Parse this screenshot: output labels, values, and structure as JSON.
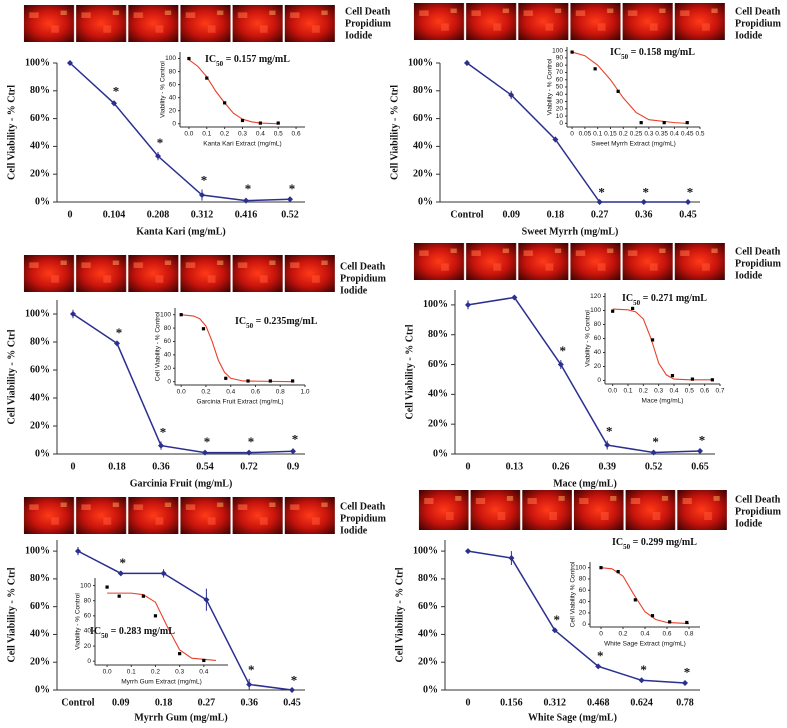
{
  "chart_data": [
    {
      "type": "line",
      "image_label": [
        "Cell Death",
        "Propidium",
        "Iodide"
      ],
      "x_label": "Kanta Kari (mg/mL)",
      "y_label": "Cell Viability - % Ctrl",
      "categories": [
        "0",
        "0.104",
        "0.208",
        "0.312",
        "0.416",
        "0.52"
      ],
      "values": [
        100,
        71,
        33,
        5,
        1,
        2
      ],
      "errors": [
        1,
        2,
        3,
        4,
        2,
        1
      ],
      "markers": [
        null,
        "*",
        "*",
        "*",
        "*",
        "*"
      ],
      "color": "#2b2f8f",
      "ylim": [
        0,
        100
      ],
      "yticks": [
        {
          "value": 0,
          "label": "0%"
        },
        {
          "value": 20,
          "label": "20%"
        },
        {
          "value": 40,
          "label": "40%"
        },
        {
          "value": 60,
          "label": "60%"
        },
        {
          "value": 80,
          "label": "80%"
        },
        {
          "value": 100,
          "label": "100%"
        }
      ],
      "inset": {
        "type": "scatter",
        "annotation": [
          "IC",
          "50",
          " = 0.157 mg/mL"
        ],
        "x_label": "Kanta Kari Extract (mg/mL)",
        "y_label": "Viability - % Control",
        "x": [
          0,
          0.1,
          0.2,
          0.3,
          0.4,
          0.5
        ],
        "values": [
          100,
          70,
          32,
          5,
          1,
          1
        ],
        "color": "#000000",
        "fit": {
          "x": [
            0,
            0.05,
            0.1,
            0.15,
            0.2,
            0.25,
            0.3,
            0.35,
            0.4,
            0.5
          ],
          "values": [
            98,
            88,
            72,
            50,
            32,
            16,
            7,
            3,
            1,
            0
          ],
          "color": "#e8402a"
        },
        "xlim": [
          -0.05,
          0.65
        ],
        "xticks": [
          {
            "value": 0,
            "label": "0.0"
          },
          {
            "value": 0.1,
            "label": "0.1"
          },
          {
            "value": 0.2,
            "label": "0.2"
          },
          {
            "value": 0.3,
            "label": "0.3"
          },
          {
            "value": 0.4,
            "label": "0.4"
          },
          {
            "value": 0.5,
            "label": "0.5"
          },
          {
            "value": 0.6,
            "label": "0.6"
          }
        ],
        "ylim": [
          -5,
          110
        ],
        "yticks": [
          0,
          20,
          40,
          60,
          80,
          100
        ]
      }
    },
    {
      "type": "line",
      "image_label": [
        "Cell Death",
        "Propidium",
        "Iodide"
      ],
      "x_label": "Sweet Myrrh (mg/mL)",
      "y_label": "Cell Viability - % Ctrl",
      "categories": [
        "Control",
        "0.09",
        "0.18",
        "0.27",
        "0.36",
        "0.45"
      ],
      "values": [
        100,
        77,
        45,
        0,
        0,
        0
      ],
      "errors": [
        2,
        3,
        2,
        0.5,
        0.5,
        0.5
      ],
      "markers": [
        null,
        null,
        null,
        "*",
        "*",
        "*"
      ],
      "color": "#2b2f8f",
      "ylim": [
        0,
        100
      ],
      "yticks": [
        {
          "value": 0,
          "label": "0%"
        },
        {
          "value": 20,
          "label": "20%"
        },
        {
          "value": 40,
          "label": "40%"
        },
        {
          "value": 60,
          "label": "60%"
        },
        {
          "value": 80,
          "label": "80%"
        },
        {
          "value": 100,
          "label": "100%"
        }
      ],
      "inset": {
        "type": "scatter",
        "annotation": [
          "IC",
          "50",
          " = 0.158 mg/mL"
        ],
        "x_label": "Sweet Myrrh Extract (mg/mL)",
        "y_label": "Viability - % Control",
        "x": [
          0,
          0.09,
          0.18,
          0.27,
          0.36,
          0.45
        ],
        "values": [
          98,
          75,
          44,
          1,
          1,
          1
        ],
        "color": "#000000",
        "fit": {
          "x": [
            0,
            0.05,
            0.1,
            0.15,
            0.2,
            0.25,
            0.3,
            0.4,
            0.45
          ],
          "values": [
            98,
            93,
            80,
            60,
            35,
            15,
            5,
            1,
            0
          ],
          "color": "#e8402a"
        },
        "xlim": [
          -0.02,
          0.5
        ],
        "xticks": [
          0,
          0.05,
          0.1,
          0.15,
          0.2,
          0.25,
          0.3,
          0.35,
          0.4,
          0.45,
          0.5
        ],
        "ylim": [
          -5,
          105
        ],
        "yticks": [
          0,
          10,
          20,
          30,
          40,
          50,
          60,
          70,
          80,
          90,
          100
        ]
      }
    },
    {
      "type": "line",
      "image_label": [
        "Cell Death",
        "Propidium",
        "Iodide"
      ],
      "x_label": "Garcinia Fruit (mg/mL)",
      "y_label": "Cell Viability - % Ctrl",
      "categories": [
        "0",
        "0.18",
        "0.36",
        "0.54",
        "0.72",
        "0.9"
      ],
      "values": [
        100,
        79,
        6,
        1,
        1,
        2
      ],
      "errors": [
        3,
        1,
        3,
        1,
        1,
        2
      ],
      "markers": [
        null,
        "*",
        "*",
        "*",
        "*",
        "*"
      ],
      "color": "#2b2f8f",
      "ylim": [
        0,
        110
      ],
      "yticks": [
        {
          "value": 0,
          "label": "0%"
        },
        {
          "value": 20,
          "label": "20%"
        },
        {
          "value": 40,
          "label": "40%"
        },
        {
          "value": 60,
          "label": "60%"
        },
        {
          "value": 80,
          "label": "80%"
        },
        {
          "value": 100,
          "label": "100%"
        }
      ],
      "inset": {
        "type": "scatter",
        "annotation": [
          "IC",
          "50",
          " = 0.235mg/mL"
        ],
        "x_label": "Garcinia Fruit Extract (mg/mL)",
        "y_label": "Cell Viability - % Control",
        "x": [
          0,
          0.18,
          0.36,
          0.54,
          0.72,
          0.9
        ],
        "values": [
          100,
          79,
          5,
          1,
          1,
          1
        ],
        "color": "#000000",
        "fit": {
          "x": [
            0,
            0.1,
            0.15,
            0.2,
            0.25,
            0.3,
            0.35,
            0.4,
            0.5,
            0.9
          ],
          "values": [
            100,
            98,
            94,
            83,
            60,
            32,
            14,
            5,
            1,
            0
          ],
          "color": "#e8402a"
        },
        "xlim": [
          -0.05,
          1
        ],
        "xticks": [
          {
            "value": 0,
            "label": "0.0"
          },
          {
            "value": 0.2,
            "label": "0.2"
          },
          {
            "value": 0.4,
            "label": "0.4"
          },
          {
            "value": 0.6,
            "label": "0.6"
          },
          {
            "value": 0.8,
            "label": "0.8"
          },
          {
            "value": 1,
            "label": "1.0"
          }
        ],
        "ylim": [
          -5,
          110
        ],
        "yticks": [
          0,
          20,
          40,
          60,
          80,
          100
        ]
      }
    },
    {
      "type": "line",
      "image_label": [
        "Cell Death",
        "Propidium",
        "Iodide"
      ],
      "x_label": "Mace (mg/mL)",
      "y_label": "Cell Viability - % Ctrl",
      "categories": [
        "0",
        "0.13",
        "0.26",
        "0.39",
        "0.52",
        "0.65"
      ],
      "values": [
        100,
        105,
        60,
        6,
        1,
        2
      ],
      "errors": [
        3,
        0.5,
        3,
        3,
        1,
        1
      ],
      "markers": [
        null,
        null,
        "*",
        "*",
        "*",
        "*"
      ],
      "color": "#2b2f8f",
      "ylim": [
        0,
        110
      ],
      "yticks": [
        {
          "value": 0,
          "label": "0%"
        },
        {
          "value": 20,
          "label": "20%"
        },
        {
          "value": 40,
          "label": "40%"
        },
        {
          "value": 60,
          "label": "60%"
        },
        {
          "value": 80,
          "label": "80%"
        },
        {
          "value": 100,
          "label": "100%"
        }
      ],
      "inset": {
        "type": "scatter",
        "annotation": [
          "IC",
          "50",
          " = 0.271 mg/mL"
        ],
        "x_label": "Mace (mg/mL)",
        "y_label": "Viability - % Control",
        "x": [
          0,
          0.13,
          0.26,
          0.39,
          0.52,
          0.65
        ],
        "values": [
          99,
          103,
          58,
          7,
          2,
          1
        ],
        "color": "#000000",
        "fit": {
          "x": [
            0,
            0.1,
            0.15,
            0.2,
            0.25,
            0.3,
            0.35,
            0.4,
            0.5,
            0.65
          ],
          "values": [
            102,
            101,
            98,
            88,
            60,
            25,
            8,
            2,
            1,
            1
          ],
          "color": "#e8402a"
        },
        "xlim": [
          -0.05,
          0.7
        ],
        "xticks": [
          {
            "value": 0,
            "label": "0.0"
          },
          {
            "value": 0.1,
            "label": "0.1"
          },
          {
            "value": 0.2,
            "label": "0.2"
          },
          {
            "value": 0.3,
            "label": "0.3"
          },
          {
            "value": 0.4,
            "label": "0.4"
          },
          {
            "value": 0.5,
            "label": "0.5"
          },
          {
            "value": 0.6,
            "label": "0.6"
          },
          {
            "value": 0.7,
            "label": "0.7"
          }
        ],
        "ylim": [
          -5,
          125
        ],
        "yticks": [
          0,
          20,
          40,
          60,
          80,
          100,
          120
        ]
      }
    },
    {
      "type": "line",
      "image_label": [
        "Cell Death",
        "Propidium",
        "Iodide"
      ],
      "x_label": "Myrrh Gum (mg/mL)",
      "y_label": "Cell Viability - % Ctrl",
      "categories": [
        "Control",
        "0.09",
        "0.18",
        "0.27",
        "0.36",
        "0.45"
      ],
      "values": [
        100,
        84,
        84,
        65,
        4,
        0
      ],
      "errors": [
        3,
        1,
        3,
        8,
        4,
        0.5
      ],
      "markers": [
        null,
        "*",
        null,
        null,
        "*",
        "*"
      ],
      "color": "#2b2f8f",
      "ylim": [
        0,
        108
      ],
      "yticks": [
        {
          "value": 0,
          "label": "0%"
        },
        {
          "value": 20,
          "label": "20%"
        },
        {
          "value": 40,
          "label": "40%"
        },
        {
          "value": 60,
          "label": "60%"
        },
        {
          "value": 80,
          "label": "80%"
        },
        {
          "value": 100,
          "label": "100%"
        }
      ],
      "inset": {
        "type": "scatter",
        "annotation": [
          "IC",
          "50",
          " = 0.283 mg/mL"
        ],
        "x_label": "Myrrh Gum Extract (mg/mL)",
        "y_label": "Viability - % Control",
        "x": [
          0,
          0.05,
          0.15,
          0.2,
          0.3,
          0.4
        ],
        "values": [
          98,
          86,
          86,
          60,
          10,
          1
        ],
        "color": "#000000",
        "fit": {
          "x": [
            0,
            0.1,
            0.15,
            0.2,
            0.25,
            0.3,
            0.35,
            0.45
          ],
          "values": [
            90,
            90,
            88,
            78,
            45,
            15,
            4,
            1
          ],
          "color": "#e8402a"
        },
        "xlim": [
          -0.05,
          0.5
        ],
        "xticks": [
          {
            "value": 0,
            "label": "0.0"
          },
          {
            "value": 0.1,
            "label": "0.1"
          },
          {
            "value": 0.2,
            "label": "0.2"
          },
          {
            "value": 0.3,
            "label": "0.3"
          },
          {
            "value": 0.4,
            "label": "0.4"
          }
        ],
        "ylim": [
          -5,
          110
        ],
        "yticks": [
          0,
          20,
          40,
          60,
          80,
          100
        ]
      }
    },
    {
      "type": "line",
      "image_label": [
        "Cell Death",
        "Propidium",
        "Iodide"
      ],
      "x_label": "White Sage (mg/mL)",
      "y_label": "Cell Viability - % Ctrl",
      "categories": [
        "0",
        "0.156",
        "0.312",
        "0.468",
        "0.624",
        "0.78"
      ],
      "values": [
        100,
        95,
        43,
        17,
        7,
        5
      ],
      "errors": [
        1,
        5,
        1,
        1,
        1,
        1
      ],
      "markers": [
        null,
        null,
        "*",
        "*",
        "*",
        "*"
      ],
      "color": "#2b2f8f",
      "ylim": [
        0,
        108
      ],
      "yticks": [
        {
          "value": 0,
          "label": "0%"
        },
        {
          "value": 20,
          "label": "20%"
        },
        {
          "value": 40,
          "label": "40%"
        },
        {
          "value": 60,
          "label": "60%"
        },
        {
          "value": 80,
          "label": "80%"
        },
        {
          "value": 100,
          "label": "100%"
        }
      ],
      "inset": {
        "type": "scatter",
        "annotation": [
          "IC",
          "50",
          " = 0.299 mg/mL"
        ],
        "x_label": "White Sage Extract (mg/mL)",
        "y_label": "Cell Viability % Control",
        "x": [
          0,
          0.156,
          0.312,
          0.468,
          0.624,
          0.78
        ],
        "values": [
          100,
          93,
          43,
          15,
          4,
          3
        ],
        "color": "#000000",
        "fit": {
          "x": [
            0,
            0.1,
            0.2,
            0.3,
            0.4,
            0.5,
            0.6,
            0.8
          ],
          "values": [
            100,
            98,
            85,
            52,
            22,
            8,
            3,
            1
          ],
          "color": "#e8402a"
        },
        "xlim": [
          -0.1,
          0.9
        ],
        "xticks": [
          0,
          0.2,
          0.4,
          0.6,
          0.8
        ],
        "ylim": [
          -5,
          110
        ],
        "yticks": [
          0,
          20,
          40,
          60,
          80,
          100
        ]
      }
    }
  ]
}
